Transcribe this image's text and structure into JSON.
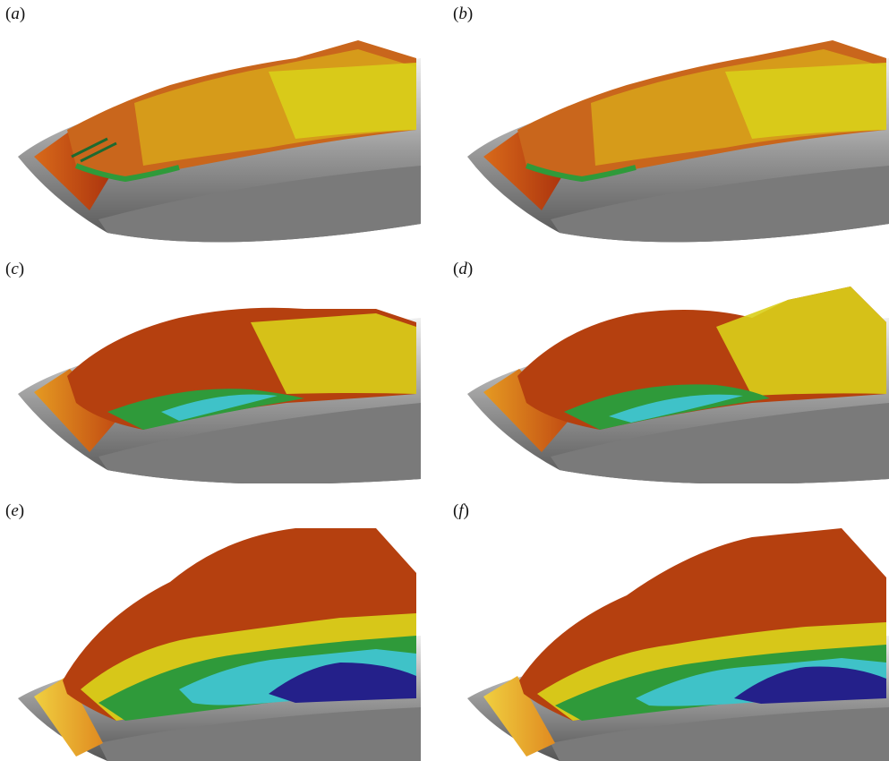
{
  "figure": {
    "panels": [
      {
        "id": "a",
        "letter": "a",
        "open": "(",
        "close": ")"
      },
      {
        "id": "b",
        "letter": "b",
        "open": "(",
        "close": ")"
      },
      {
        "id": "c",
        "letter": "c",
        "open": "(",
        "close": ")"
      },
      {
        "id": "d",
        "letter": "d",
        "open": "(",
        "close": ")"
      },
      {
        "id": "e",
        "letter": "e",
        "open": "(",
        "close": ")"
      },
      {
        "id": "f",
        "letter": "f",
        "open": "(",
        "close": ")"
      }
    ],
    "palette": {
      "surface_light": "#d9d9d9",
      "surface_dark": "#5a5a5a",
      "red": "#b0300a",
      "orange": "#d8681a",
      "yellow": "#e6cf18",
      "green": "#2f9a3a",
      "cyan": "#3fc2c8",
      "blue": "#24208a"
    }
  }
}
